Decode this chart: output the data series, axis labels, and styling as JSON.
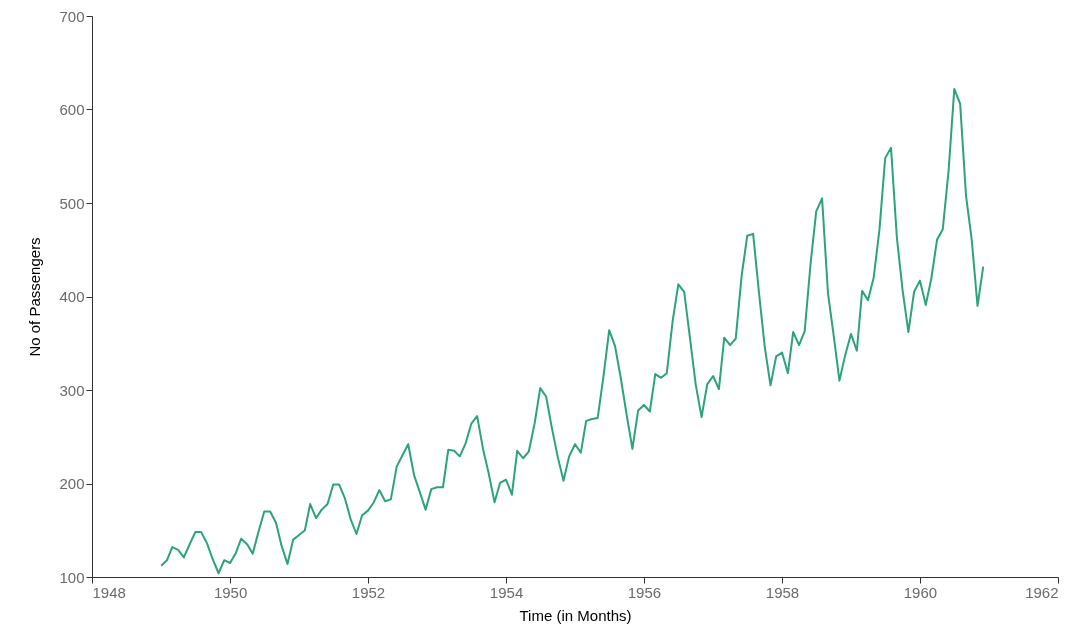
{
  "chart_data": {
    "type": "line",
    "xlabel": "Time (in Months)",
    "ylabel": "No of Passengers",
    "x": [
      "1949-01",
      "1949-02",
      "1949-03",
      "1949-04",
      "1949-05",
      "1949-06",
      "1949-07",
      "1949-08",
      "1949-09",
      "1949-10",
      "1949-11",
      "1949-12",
      "1950-01",
      "1950-02",
      "1950-03",
      "1950-04",
      "1950-05",
      "1950-06",
      "1950-07",
      "1950-08",
      "1950-09",
      "1950-10",
      "1950-11",
      "1950-12",
      "1951-01",
      "1951-02",
      "1951-03",
      "1951-04",
      "1951-05",
      "1951-06",
      "1951-07",
      "1951-08",
      "1951-09",
      "1951-10",
      "1951-11",
      "1951-12",
      "1952-01",
      "1952-02",
      "1952-03",
      "1952-04",
      "1952-05",
      "1952-06",
      "1952-07",
      "1952-08",
      "1952-09",
      "1952-10",
      "1952-11",
      "1952-12",
      "1953-01",
      "1953-02",
      "1953-03",
      "1953-04",
      "1953-05",
      "1953-06",
      "1953-07",
      "1953-08",
      "1953-09",
      "1953-10",
      "1953-11",
      "1953-12",
      "1954-01",
      "1954-02",
      "1954-03",
      "1954-04",
      "1954-05",
      "1954-06",
      "1954-07",
      "1954-08",
      "1954-09",
      "1954-10",
      "1954-11",
      "1954-12",
      "1955-01",
      "1955-02",
      "1955-03",
      "1955-04",
      "1955-05",
      "1955-06",
      "1955-07",
      "1955-08",
      "1955-09",
      "1955-10",
      "1955-11",
      "1955-12",
      "1956-01",
      "1956-02",
      "1956-03",
      "1956-04",
      "1956-05",
      "1956-06",
      "1956-07",
      "1956-08",
      "1956-09",
      "1956-10",
      "1956-11",
      "1956-12",
      "1957-01",
      "1957-02",
      "1957-03",
      "1957-04",
      "1957-05",
      "1957-06",
      "1957-07",
      "1957-08",
      "1957-09",
      "1957-10",
      "1957-11",
      "1957-12",
      "1958-01",
      "1958-02",
      "1958-03",
      "1958-04",
      "1958-05",
      "1958-06",
      "1958-07",
      "1958-08",
      "1958-09",
      "1958-10",
      "1958-11",
      "1958-12",
      "1959-01",
      "1959-02",
      "1959-03",
      "1959-04",
      "1959-05",
      "1959-06",
      "1959-07",
      "1959-08",
      "1959-09",
      "1959-10",
      "1959-11",
      "1959-12",
      "1960-01",
      "1960-02",
      "1960-03",
      "1960-04",
      "1960-05",
      "1960-06",
      "1960-07",
      "1960-08",
      "1960-09",
      "1960-10",
      "1960-11",
      "1960-12"
    ],
    "series": [
      {
        "color": "#2ca37b",
        "values": [
          112,
          118,
          132,
          129,
          121,
          135,
          148,
          148,
          136,
          119,
          104,
          118,
          115,
          126,
          141,
          135,
          125,
          149,
          170,
          170,
          158,
          133,
          114,
          140,
          145,
          150,
          178,
          163,
          172,
          178,
          199,
          199,
          184,
          162,
          146,
          166,
          171,
          180,
          193,
          181,
          183,
          218,
          230,
          242,
          209,
          191,
          172,
          194,
          196,
          196,
          236,
          235,
          229,
          243,
          264,
          272,
          237,
          211,
          180,
          201,
          204,
          188,
          235,
          227,
          234,
          264,
          302,
          293,
          259,
          229,
          203,
          229,
          242,
          233,
          267,
          269,
          270,
          315,
          364,
          347,
          312,
          274,
          237,
          278,
          284,
          277,
          317,
          313,
          318,
          374,
          413,
          405,
          355,
          306,
          271,
          306,
          315,
          301,
          356,
          348,
          355,
          422,
          465,
          467,
          404,
          347,
          305,
          336,
          340,
          318,
          362,
          348,
          363,
          435,
          491,
          505,
          404,
          359,
          310,
          337,
          360,
          342,
          406,
          396,
          420,
          472,
          548,
          559,
          463,
          407,
          362,
          405,
          417,
          391,
          419,
          461,
          472,
          535,
          622,
          606,
          508,
          461,
          390,
          432
        ]
      }
    ],
    "xlim": [
      "1948",
      "1962"
    ],
    "xticks": [
      "1948",
      "1950",
      "1952",
      "1954",
      "1956",
      "1958",
      "1960",
      "1962"
    ],
    "ylim": [
      100,
      700
    ],
    "yticks": [
      100,
      200,
      300,
      400,
      500,
      600,
      700
    ],
    "grid": false,
    "marker": "none",
    "line_style": "solid"
  }
}
